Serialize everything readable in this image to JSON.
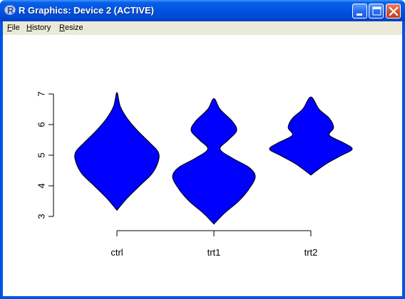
{
  "window": {
    "title": "R Graphics: Device 2 (ACTIVE)",
    "app_icon": "r-logo-icon",
    "controls": [
      "minimize-icon",
      "maximize-icon",
      "close-icon"
    ]
  },
  "menubar": {
    "file": {
      "accel": "F",
      "rest": "ile"
    },
    "history": {
      "accel": "H",
      "rest": "istory"
    },
    "resize": {
      "accel": "R",
      "rest": "esize"
    }
  },
  "chart_data": {
    "type": "violin",
    "categories": [
      "ctrl",
      "trt1",
      "trt2"
    ],
    "ylim": [
      3,
      7
    ],
    "yticks": [
      "3",
      "4",
      "5",
      "6",
      "7"
    ],
    "fill_color": "#0000ff",
    "xlabel": "",
    "ylabel": "",
    "title": "",
    "series": [
      {
        "name": "ctrl",
        "min": 3.2,
        "max": 7.05,
        "density_y": [
          3.2,
          3.6,
          4.0,
          4.4,
          4.8,
          5.1,
          5.4,
          5.8,
          6.2,
          6.6,
          7.05
        ],
        "half_width": [
          0.0,
          0.25,
          0.55,
          0.85,
          1.0,
          1.0,
          0.8,
          0.5,
          0.25,
          0.08,
          0.0
        ]
      },
      {
        "name": "trt1",
        "min": 2.75,
        "max": 6.85,
        "density_y": [
          2.75,
          3.1,
          3.5,
          3.9,
          4.3,
          4.6,
          4.9,
          5.2,
          5.5,
          5.8,
          6.1,
          6.5,
          6.85
        ],
        "half_width": [
          0.0,
          0.25,
          0.6,
          0.85,
          1.0,
          0.85,
          0.45,
          0.15,
          0.35,
          0.55,
          0.45,
          0.15,
          0.0
        ]
      },
      {
        "name": "trt2",
        "min": 4.35,
        "max": 6.9,
        "density_y": [
          4.35,
          4.7,
          5.0,
          5.2,
          5.4,
          5.65,
          5.9,
          6.2,
          6.5,
          6.9
        ],
        "half_width": [
          0.0,
          0.35,
          0.75,
          1.0,
          0.8,
          0.45,
          0.55,
          0.45,
          0.2,
          0.0
        ]
      }
    ]
  }
}
